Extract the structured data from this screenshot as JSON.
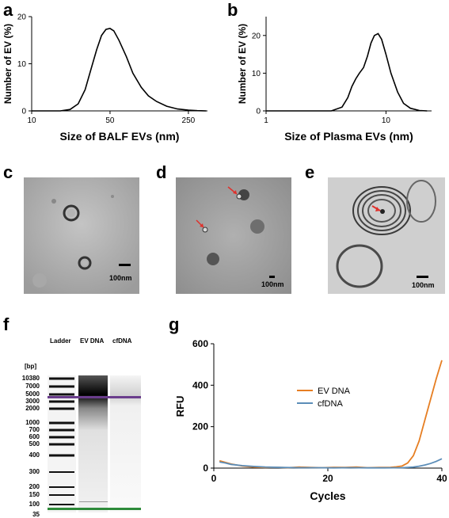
{
  "panels": {
    "a": "a",
    "b": "b",
    "c": "c",
    "d": "d",
    "e": "e",
    "f": "f",
    "g": "g"
  },
  "micrographs": {
    "c": {
      "scale": "100nm"
    },
    "d": {
      "scale": "100nm"
    },
    "e": {
      "scale": "100nm"
    }
  },
  "gel": {
    "lanes": [
      "Ladder",
      "EV DNA",
      "cfDNA"
    ],
    "bp_label": "[bp]",
    "markers": [
      "10380",
      "7000",
      "5000",
      "3000",
      "2000",
      "1000",
      "700",
      "600",
      "500",
      "400",
      "300",
      "200",
      "150",
      "100",
      "35"
    ]
  },
  "chart_data": [
    {
      "type": "line",
      "panel": "a",
      "xlabel": "Size of BALF EVs (nm)",
      "ylabel": "Number of EV (%)",
      "x_scale": "log",
      "xticks": [
        "10",
        "50",
        "250"
      ],
      "yticks": [
        "0",
        "10",
        "20"
      ],
      "ylim": [
        0,
        20
      ],
      "series": [
        {
          "x": [
            10,
            18,
            22,
            26,
            30,
            34,
            38,
            42,
            46,
            50,
            54,
            60,
            70,
            80,
            95,
            110,
            130,
            160,
            200,
            250,
            300,
            360
          ],
          "y": [
            0,
            0,
            0.3,
            1.5,
            4.5,
            9,
            13,
            16,
            17.3,
            17.5,
            17,
            15,
            11.5,
            8,
            5,
            3.2,
            2,
            1,
            0.4,
            0.15,
            0.05,
            0
          ]
        }
      ]
    },
    {
      "type": "line",
      "panel": "b",
      "xlabel": "Size of Plasma EVs (nm)",
      "ylabel": "Number of EV (%)",
      "x_scale": "log",
      "xticks": [
        "1",
        "10"
      ],
      "yticks": [
        "0",
        "10",
        "20"
      ],
      "ylim": [
        0,
        25
      ],
      "series": [
        {
          "x": [
            1,
            3.5,
            4.3,
            4.8,
            5.2,
            5.6,
            6.0,
            6.5,
            7.0,
            7.5,
            8.0,
            8.6,
            9.2,
            10,
            11,
            12.5,
            14,
            16,
            19,
            22
          ],
          "y": [
            0,
            0,
            1,
            3.5,
            6.5,
            8.5,
            10,
            11.5,
            14.5,
            18,
            20,
            20.5,
            19,
            15,
            10,
            5,
            2,
            0.7,
            0.1,
            0
          ]
        }
      ]
    },
    {
      "type": "line",
      "panel": "g",
      "xlabel": "Cycles",
      "ylabel": "RFU",
      "xticks": [
        "0",
        "20",
        "40"
      ],
      "yticks": [
        "0",
        "200",
        "400",
        "600"
      ],
      "xlim": [
        0,
        40
      ],
      "ylim": [
        0,
        600
      ],
      "series": [
        {
          "name": "EV DNA",
          "color": "#e67e22",
          "x": [
            1,
            2,
            3,
            5,
            7,
            9,
            11,
            13,
            15,
            17,
            19,
            21,
            23,
            25,
            27,
            29,
            31,
            32,
            33,
            34,
            35,
            36,
            37,
            38,
            39,
            40
          ],
          "y": [
            35,
            28,
            20,
            10,
            5,
            3,
            4,
            2,
            5,
            3,
            2,
            4,
            3,
            5,
            2,
            3,
            4,
            6,
            10,
            25,
            60,
            130,
            230,
            330,
            430,
            520
          ]
        },
        {
          "name": "cfDNA",
          "color": "#5b8db8",
          "x": [
            1,
            2,
            3,
            5,
            7,
            9,
            12,
            15,
            18,
            21,
            24,
            27,
            30,
            33,
            35,
            36,
            37,
            38,
            39,
            40
          ],
          "y": [
            30,
            25,
            18,
            12,
            8,
            5,
            3,
            2,
            2,
            1,
            2,
            1,
            1,
            2,
            5,
            9,
            15,
            22,
            32,
            45
          ]
        }
      ]
    }
  ]
}
